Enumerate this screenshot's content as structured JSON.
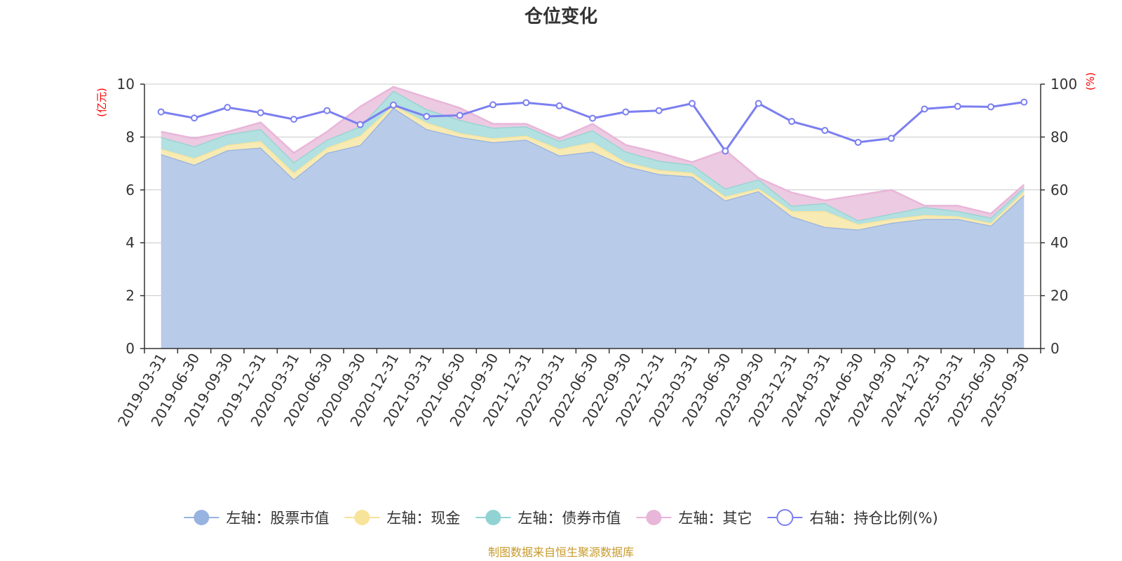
{
  "chart_data": {
    "type": "area",
    "title": "仓位变化",
    "left_axis": {
      "unit": "(亿元)",
      "min": 0,
      "max": 10,
      "ticks": [
        "0",
        "2",
        "4",
        "6",
        "8",
        "10"
      ],
      "tick_values": [
        0,
        2,
        4,
        6,
        8,
        10
      ]
    },
    "right_axis": {
      "unit": "(%)",
      "min": 0,
      "max": 100,
      "ticks": [
        "0",
        "20",
        "40",
        "60",
        "80",
        "100"
      ],
      "tick_values": [
        0,
        20,
        40,
        60,
        80,
        100
      ]
    },
    "categories": [
      "2019-03-31",
      "2019-06-30",
      "2019-09-30",
      "2019-12-31",
      "2020-03-31",
      "2020-06-30",
      "2020-09-30",
      "2020-12-31",
      "2021-03-31",
      "2021-06-30",
      "2021-09-30",
      "2021-12-31",
      "2022-03-31",
      "2022-06-30",
      "2022-09-30",
      "2022-12-31",
      "2023-03-31",
      "2023-06-30",
      "2023-09-30",
      "2023-12-31",
      "2024-03-31",
      "2024-06-30",
      "2024-09-30",
      "2024-12-31",
      "2025-03-31",
      "2025-06-30",
      "2025-09-30"
    ],
    "series": [
      {
        "name": "左轴：股票市值",
        "axis": "left",
        "stack": "total",
        "color": "#97b3e0",
        "fill": "#b8cbe9",
        "values": [
          7.35,
          6.95,
          7.5,
          7.6,
          6.4,
          7.4,
          7.7,
          9.1,
          8.3,
          8.0,
          7.8,
          7.9,
          7.3,
          7.45,
          6.9,
          6.6,
          6.5,
          5.6,
          5.95,
          5.0,
          4.6,
          4.5,
          4.75,
          4.9,
          4.9,
          4.65,
          5.8
        ]
      },
      {
        "name": "左轴：现金",
        "axis": "left",
        "stack": "total",
        "color": "#f7e39a",
        "fill": "#f8eab3",
        "values": [
          0.2,
          0.25,
          0.2,
          0.25,
          0.25,
          0.2,
          0.35,
          0.1,
          0.25,
          0.15,
          0.15,
          0.15,
          0.25,
          0.35,
          0.15,
          0.15,
          0.15,
          0.15,
          0.1,
          0.2,
          0.6,
          0.2,
          0.15,
          0.15,
          0.1,
          0.1,
          0.15
        ]
      },
      {
        "name": "左轴：债券市值",
        "axis": "left",
        "stack": "total",
        "color": "#91d3d3",
        "fill": "#b3e0e0",
        "values": [
          0.45,
          0.45,
          0.4,
          0.45,
          0.4,
          0.3,
          0.35,
          0.55,
          0.5,
          0.5,
          0.4,
          0.35,
          0.3,
          0.45,
          0.4,
          0.35,
          0.3,
          0.3,
          0.35,
          0.2,
          0.3,
          0.15,
          0.2,
          0.3,
          0.2,
          0.2,
          0.15
        ]
      },
      {
        "name": "左轴：其它",
        "axis": "left",
        "stack": "total",
        "color": "#e8b6d9",
        "fill": "#eccae2",
        "values": [
          0.2,
          0.3,
          0.1,
          0.25,
          0.35,
          0.3,
          0.75,
          0.15,
          0.45,
          0.45,
          0.15,
          0.1,
          0.1,
          0.25,
          0.25,
          0.3,
          0.1,
          1.45,
          0.05,
          0.5,
          0.1,
          0.95,
          0.9,
          0.05,
          0.2,
          0.15,
          0.1
        ]
      },
      {
        "name": "右轴：持仓比例(%)",
        "axis": "right",
        "type": "line",
        "color": "#7b7ff0",
        "values": [
          89.5,
          87.2,
          91.2,
          89.2,
          86.7,
          90.0,
          84.7,
          92.1,
          87.8,
          88.2,
          92.2,
          93.0,
          91.8,
          87.1,
          89.5,
          90.0,
          92.7,
          74.7,
          92.7,
          85.9,
          82.5,
          78.0,
          79.5,
          90.6,
          91.6,
          91.4,
          93.2
        ]
      }
    ],
    "legend": [
      "左轴：股票市值",
      "左轴：现金",
      "左轴：债券市值",
      "左轴：其它",
      "右轴：持仓比例(%)"
    ],
    "legend_position": "bottom",
    "grid": true
  },
  "footer": {
    "source": "制图数据来自恒生聚源数据库"
  }
}
